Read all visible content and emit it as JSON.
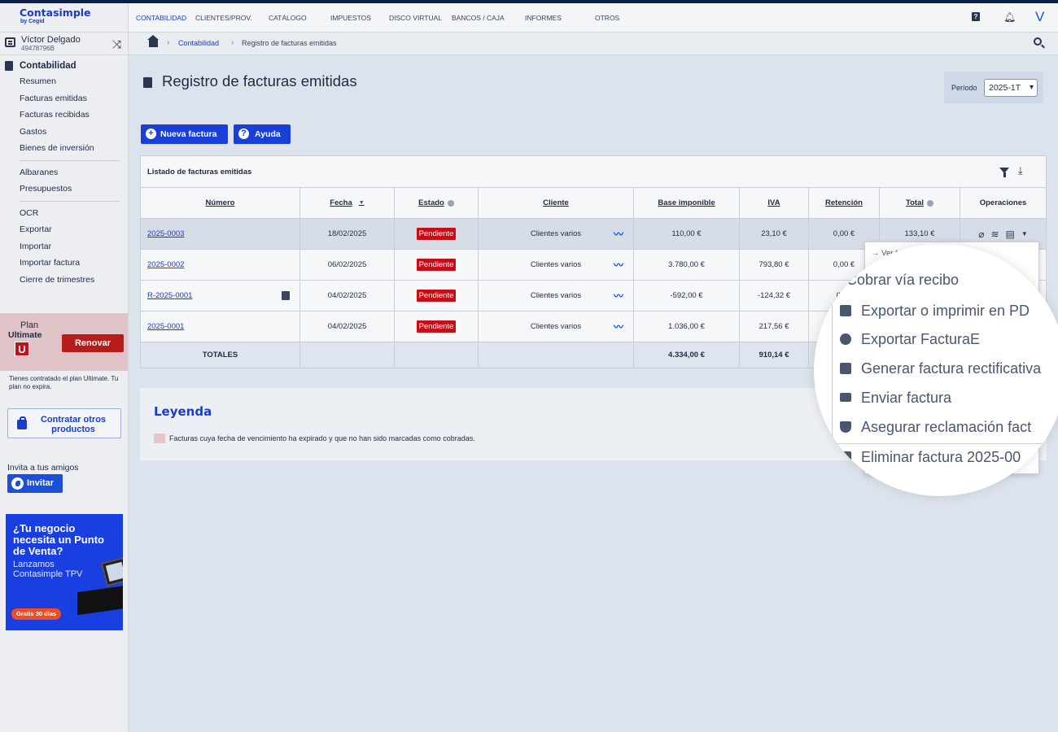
{
  "brand": {
    "name": "Contasimple",
    "sub": "by Cegid"
  },
  "user": {
    "name": "Víctor Delgado",
    "id": "49478796B"
  },
  "sidebar": {
    "section": "Contabilidad",
    "items": [
      "Resumen",
      "Facturas emitidas",
      "Facturas recibidas",
      "Gastos",
      "Bienes de inversión"
    ],
    "items2": [
      "Albaranes",
      "Presupuestos"
    ],
    "items3": [
      "OCR",
      "Exportar",
      "Importar",
      "Importar factura",
      "Cierre de trimestres"
    ]
  },
  "plan": {
    "word": "Plan",
    "name": "Ultimate",
    "letter": "U",
    "renew": "Renovar",
    "note": "Tienes contratado el plan Ultimate. Tu plan no expira.",
    "contract": "Contratar otros productos"
  },
  "invite": {
    "text": "Invita a tus amigos",
    "button": "Invitar"
  },
  "promo": {
    "title": "¿Tu negocio necesita un Punto de Venta?",
    "sub": "Lanzamos Contasimple TPV",
    "badge": "Gratis 30 días"
  },
  "topnav": {
    "tabs": [
      "CONTABILIDAD",
      "CLIENTES/PROV.",
      "CATÁLOGO",
      "IMPUESTOS",
      "DISCO VIRTUAL",
      "BANCOS / CAJA",
      "INFORMES",
      "OTROS"
    ],
    "avatar": "V"
  },
  "breadcrumb": {
    "link": "Contabilidad",
    "current": "Registro de facturas emitidas"
  },
  "page": {
    "title": "Registro de facturas emitidas",
    "period_label": "Período",
    "period_value": "2025-1T"
  },
  "buttons": {
    "new_invoice": "Nueva factura",
    "help": "Ayuda"
  },
  "table": {
    "title": "Listado de facturas emitidas",
    "headers": [
      "Número",
      "Fecha",
      "Estado",
      "Cliente",
      "Base imponible",
      "IVA",
      "Retención",
      "Total",
      "Operaciones"
    ],
    "rows": [
      {
        "numero": "2025-0003",
        "fecha": "18/02/2025",
        "estado": "Pendiente",
        "cliente": "Clientes varios",
        "base": "110,00 €",
        "iva": "23,10 €",
        "retencion": "0,00 €",
        "total": "133,10 €"
      },
      {
        "numero": "2025-0002",
        "fecha": "06/02/2025",
        "estado": "Pendiente",
        "cliente": "Clientes varios",
        "base": "3.780,00 €",
        "iva": "793,80 €",
        "retencion": "0,00 €",
        "total": ""
      },
      {
        "numero": "R-2025-0001",
        "fecha": "04/02/2025",
        "estado": "Pendiente",
        "cliente": "Clientes varios",
        "base": "-592,00 €",
        "iva": "-124,32 €",
        "retencion": "0,00",
        "total": ""
      },
      {
        "numero": "2025-0001",
        "fecha": "04/02/2025",
        "estado": "Pendiente",
        "cliente": "Clientes varios",
        "base": "1.036,00 €",
        "iva": "217,56 €",
        "retencion": "",
        "total": ""
      }
    ],
    "totals": {
      "label": "TOTALES",
      "base": "4.334,00 €",
      "iva": "910,14 €"
    }
  },
  "legend": {
    "title": "Leyenda",
    "text": "Facturas cuya fecha de vencimiento ha expirado y que no han sido marcadas como cobradas."
  },
  "menu": {
    "view": "→ Ver factura 2025-0003",
    "items": [
      "Cobrar vía recibo",
      "Exportar o imprimir en PD",
      "Exportar FacturaE",
      "Generar factura rectificativa",
      "Enviar factura",
      "Asegurar reclamación fact",
      "Eliminar factura 2025-00"
    ]
  },
  "colors": {
    "accent": "#1a3cc7",
    "danger": "#c20f1a",
    "overdue_row": "#e4c5c8"
  }
}
